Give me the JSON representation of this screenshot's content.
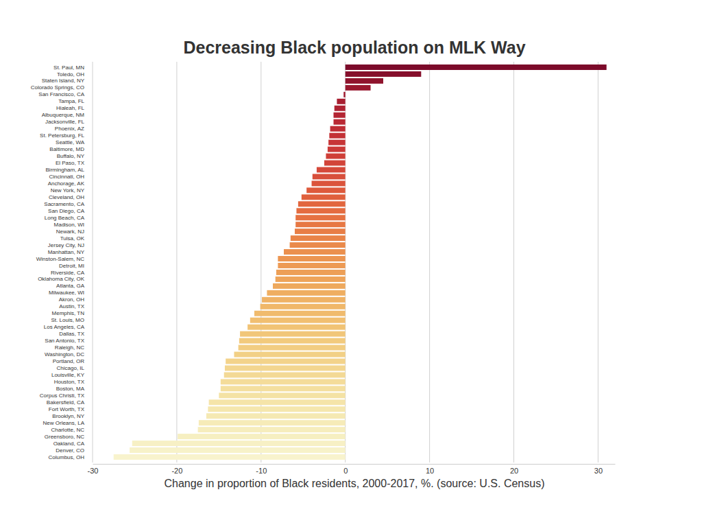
{
  "chart_data": {
    "type": "bar",
    "orientation": "horizontal",
    "title": "Decreasing Black population on MLK Way",
    "xlabel": "Change in proportion of Black residents, 2000-2017, %. (source: U.S. Census)",
    "categories": [
      "St. Paul, MN",
      "Toledo, OH",
      "Staten Island, NY",
      "Colorado Springs, CO",
      "San Francisco, CA",
      "Tampa, FL",
      "Hialeah, FL",
      "Albuquerque, NM",
      "Jacksonville, FL",
      "Phoenix, AZ",
      "St. Petersburg, FL",
      "Seattle, WA",
      "Baltimore, MD",
      "Buffalo, NY",
      "El Paso, TX",
      "Birmingham, AL",
      "Cincinnati, OH",
      "Anchorage, AK",
      "New York, NY",
      "Cleveland, OH",
      "Sacramento, CA",
      "San Diego, CA",
      "Long Beach, CA",
      "Madison, WI",
      "Newark, NJ",
      "Tulsa, OK",
      "Jersey City, NJ",
      "Manhattan, NY",
      "Winston-Salem, NC",
      "Detroit, MI",
      "Riverside, CA",
      "Oklahoma City, OK",
      "Atlanta, GA",
      "Milwaukee, WI",
      "Akron, OH",
      "Austin, TX",
      "Memphis, TN",
      "St. Louis, MO",
      "Los Angeles, CA",
      "Dallas, TX",
      "San Antonio, TX",
      "Raleigh, NC",
      "Washington, DC",
      "Portland, OR",
      "Chicago, IL",
      "Louisville, KY",
      "Houston, TX",
      "Boston, MA",
      "Corpus Christi, TX",
      "Bakersfield, CA",
      "Fort Worth, TX",
      "Brooklyn, NY",
      "New Orleans, LA",
      "Charlotte, NC",
      "Greensboro, NC",
      "Oakland, CA",
      "Denver, CO",
      "Columbus, OH"
    ],
    "values": [
      31,
      9,
      4.5,
      3,
      -0.2,
      -1,
      -1.3,
      -1.4,
      -1.4,
      -1.8,
      -1.9,
      -2.0,
      -2.1,
      -2.3,
      -2.5,
      -3.4,
      -3.9,
      -4.0,
      -4.6,
      -5.2,
      -5.6,
      -5.8,
      -5.9,
      -5.9,
      -6.0,
      -6.5,
      -6.6,
      -7.3,
      -8.0,
      -8.0,
      -8.2,
      -8.3,
      -8.6,
      -9.3,
      -9.9,
      -10.1,
      -10.8,
      -11.3,
      -11.6,
      -12.5,
      -12.6,
      -12.7,
      -13.2,
      -14.2,
      -14.3,
      -14.4,
      -14.8,
      -14.8,
      -15.0,
      -16.2,
      -16.3,
      -16.5,
      -17.4,
      -17.5,
      -19.9,
      -25.3,
      -25.6,
      -27.5
    ],
    "colors": [
      "#7c0a2a",
      "#860f2c",
      "#8f132d",
      "#98172e",
      "#a01b30",
      "#a81f31",
      "#ae2232",
      "#b42533",
      "#ba2934",
      "#bf2d35",
      "#c33136",
      "#c73537",
      "#cb3a38",
      "#cf3f38",
      "#d24439",
      "#d5493a",
      "#d84f3b",
      "#db543b",
      "#de5a3c",
      "#e0603d",
      "#e2663e",
      "#e46c40",
      "#e67242",
      "#e77844",
      "#e87e46",
      "#e98448",
      "#ea8a4b",
      "#eb904e",
      "#ec9551",
      "#ed9a54",
      "#ed9f57",
      "#eea45a",
      "#eea95e",
      "#efae61",
      "#efb265",
      "#f0b769",
      "#f0bb6d",
      "#f1bf71",
      "#f1c375",
      "#f1c679",
      "#f2ca7d",
      "#f2cd82",
      "#f2d086",
      "#f3d38b",
      "#f3d690",
      "#f3d995",
      "#f4dc9a",
      "#f4df9f",
      "#f4e2a4",
      "#f5e4a9",
      "#f5e7ae",
      "#f5e9b3",
      "#f6ebb8",
      "#f6edbd",
      "#f6efc1",
      "#f7f0c5",
      "#f7f2c9",
      "#f8f3cd"
    ],
    "xlim": [
      -30,
      32
    ],
    "xticks": [
      -30,
      -20,
      -10,
      0,
      10,
      20,
      30
    ],
    "grid": true
  }
}
